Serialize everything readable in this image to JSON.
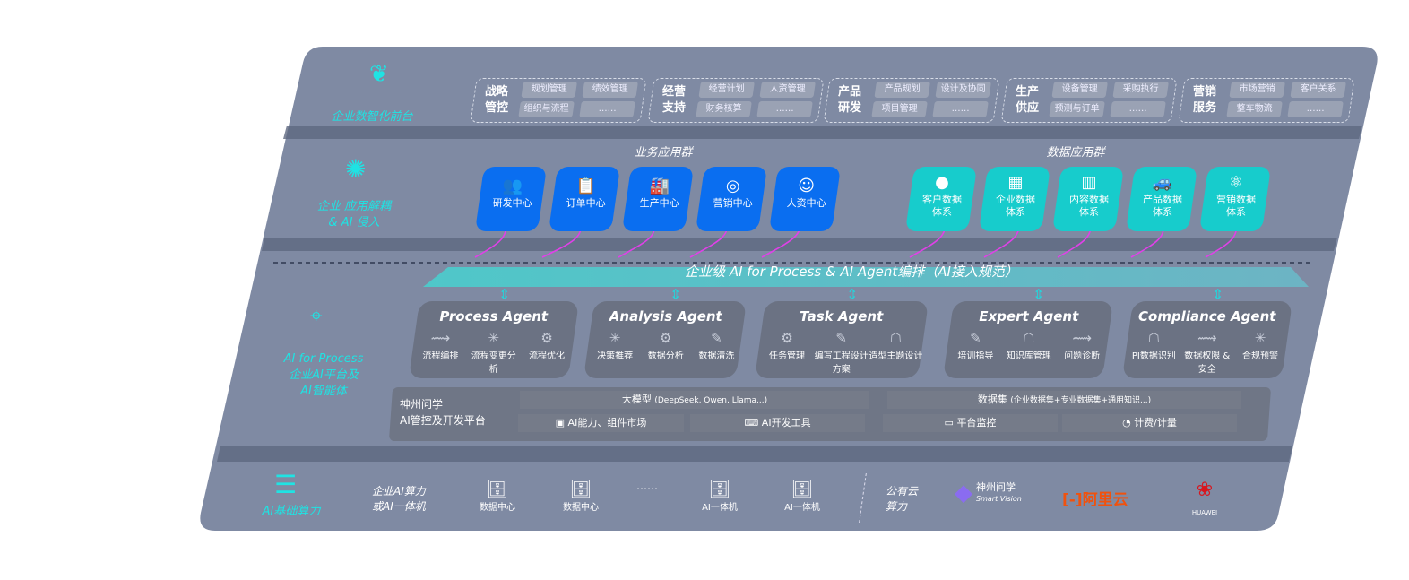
{
  "colors": {
    "panel": "#7f8aa3",
    "business_tile": "#0a6ef0",
    "data_tile": "#17cccc",
    "accent": "#1fe3e3",
    "connector": "#e040e8",
    "agent_box": "#6b7283"
  },
  "layers": {
    "front": "企业数智化前台",
    "apps": [
      "企业 应用解耦",
      "& AI 侵入"
    ],
    "ai": [
      "AI for Process",
      "企业AI平台及",
      "AI智能体"
    ],
    "infra": "AI基础算力"
  },
  "front_groups": [
    {
      "title": "战略管控",
      "items": [
        "规划管理",
        "绩效管理",
        "组织与流程",
        "……"
      ]
    },
    {
      "title": "经营支持",
      "items": [
        "经营计划",
        "人资管理",
        "财务核算",
        "……"
      ]
    },
    {
      "title": "产品研发",
      "items": [
        "产品规划",
        "设计及协同",
        "项目管理",
        "……"
      ]
    },
    {
      "title": "生产供应",
      "items": [
        "设备管理",
        "采购执行",
        "预测与订单",
        "……"
      ]
    },
    {
      "title": "营销服务",
      "items": [
        "市场营销",
        "客户关系",
        "整车物流",
        "……"
      ]
    }
  ],
  "business_apps": {
    "title": "业务应用群",
    "tiles": [
      {
        "label": "研发中心",
        "icon": "users-icon"
      },
      {
        "label": "订单中心",
        "icon": "clipboard-icon"
      },
      {
        "label": "生产中心",
        "icon": "factory-icon"
      },
      {
        "label": "营销中心",
        "icon": "target-icon"
      },
      {
        "label": "人资中心",
        "icon": "person-icon"
      }
    ]
  },
  "data_apps": {
    "title": "数据应用群",
    "tiles": [
      {
        "label": "客户数据体系",
        "icon": "user-icon"
      },
      {
        "label": "企业数据体系",
        "icon": "building-icon"
      },
      {
        "label": "内容数据体系",
        "icon": "books-icon"
      },
      {
        "label": "产品数据体系",
        "icon": "car-icon"
      },
      {
        "label": "营销数据体系",
        "icon": "atom-icon"
      }
    ]
  },
  "orchestration": "企业级 AI for Process & AI Agent编排（AI接入规范）",
  "agents": [
    {
      "name": "Process Agent",
      "items": [
        "流程编排",
        "流程变更分析",
        "流程优化"
      ]
    },
    {
      "name": "Analysis Agent",
      "items": [
        "决策推荐",
        "数据分析",
        "数据清洗"
      ]
    },
    {
      "name": "Task Agent",
      "items": [
        "任务管理",
        "编写工程设计方案",
        "造型主题设计"
      ]
    },
    {
      "name": "Expert Agent",
      "items": [
        "培训指导",
        "知识库管理",
        "问题诊断"
      ]
    },
    {
      "name": "Compliance Agent",
      "items": [
        "PI数据识别",
        "数据权限 & 安全",
        "合规预警"
      ]
    }
  ],
  "platform": {
    "title": [
      "神州问学",
      "AI管控及开发平台"
    ],
    "model_header": "大模型",
    "model_note": "(DeepSeek, Qwen, Llama...)",
    "dataset_header": "数据集",
    "dataset_note": "(企业数据集+专业数据集+通用知识...)",
    "cells": [
      "AI能力、组件市场",
      "AI开发工具",
      "平台监控",
      "计费/计量"
    ]
  },
  "infra": {
    "enterprise": [
      "企业AI算力",
      "或AI一体机"
    ],
    "servers": [
      "数据中心",
      "数据中心",
      "AI一体机",
      "AI一体机"
    ],
    "ellipsis": "……",
    "public": [
      "公有云",
      "算力"
    ],
    "vendors": {
      "smart_vision": "神州问学",
      "smart_vision_sub": "Smart Vision",
      "aliyun": "阿里云",
      "huawei": "HUAWEI"
    }
  }
}
